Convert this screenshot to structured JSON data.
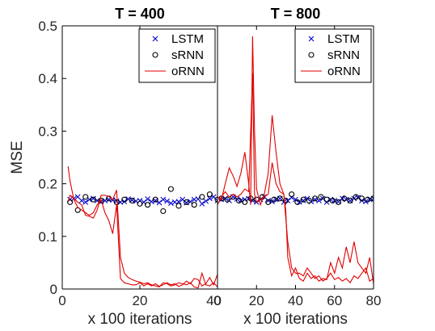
{
  "chart_data": [
    {
      "type": "scatter",
      "title": "T = 400",
      "xlabel": "x 100 iterations",
      "ylabel": "MSE",
      "xlim": [
        0,
        40
      ],
      "ylim": [
        0,
        0.5
      ],
      "xticks": [
        "0",
        "20",
        "40"
      ],
      "xtick_values": [
        0,
        20,
        40
      ],
      "yticks": [
        "0",
        "0.1",
        "0.2",
        "0.3",
        "0.4",
        "0.5"
      ],
      "ytick_values": [
        0,
        0.1,
        0.2,
        0.3,
        0.4,
        0.5
      ],
      "legend_position": "top-right",
      "series": [
        {
          "name": "LSTM",
          "kind": "marker",
          "marker": "x",
          "color": "#0000CC",
          "x": [
            2,
            3,
            4,
            5,
            6,
            7,
            8,
            9,
            10,
            11,
            12,
            13,
            14,
            15,
            16,
            17,
            18,
            19,
            20,
            21,
            22,
            23,
            24,
            25,
            26,
            27,
            28,
            29,
            30,
            31,
            32,
            33,
            34,
            35,
            36,
            37,
            38,
            39,
            40
          ],
          "y": [
            0.17,
            0.172,
            0.175,
            0.168,
            0.165,
            0.17,
            0.172,
            0.168,
            0.166,
            0.168,
            0.17,
            0.169,
            0.167,
            0.165,
            0.166,
            0.171,
            0.169,
            0.167,
            0.168,
            0.165,
            0.171,
            0.166,
            0.168,
            0.164,
            0.17,
            0.167,
            0.163,
            0.165,
            0.166,
            0.17,
            0.164,
            0.166,
            0.17,
            0.171,
            0.162,
            0.167,
            0.172,
            0.175,
            0.168
          ]
        },
        {
          "name": "sRNN",
          "kind": "marker",
          "marker": "o",
          "color": "#000000",
          "x": [
            2,
            4,
            6,
            8,
            10,
            12,
            14,
            16,
            18,
            20,
            22,
            24,
            26,
            28,
            30,
            32,
            34,
            36,
            38,
            40
          ],
          "y": [
            0.165,
            0.15,
            0.175,
            0.17,
            0.168,
            0.172,
            0.165,
            0.17,
            0.168,
            0.162,
            0.16,
            0.17,
            0.148,
            0.19,
            0.158,
            0.165,
            0.16,
            0.175,
            0.18,
            0.17
          ]
        },
        {
          "name": "oRNN",
          "kind": "line",
          "color": "#E00000",
          "lines": [
            {
              "x": [
                1.5,
                2,
                3,
                4,
                5,
                6,
                7,
                8,
                9,
                10,
                11,
                12,
                13,
                14,
                15,
                16,
                17,
                18,
                19,
                20,
                21,
                22,
                23,
                24,
                25,
                26,
                27,
                28,
                29,
                30,
                31,
                32,
                33,
                34,
                35,
                36,
                37,
                38,
                39,
                40
              ],
              "y": [
                0.233,
                0.205,
                0.17,
                0.155,
                0.15,
                0.145,
                0.14,
                0.145,
                0.16,
                0.17,
                0.145,
                0.13,
                0.105,
                0.16,
                0.02,
                0.012,
                0.01,
                0.008,
                0.008,
                0.012,
                0.006,
                0.01,
                0.006,
                0.01,
                0.005,
                0.008,
                0.012,
                0.008,
                0.01,
                0.005,
                0.008,
                0.015,
                0.01,
                0.02,
                0.018,
                0.006,
                0.01,
                0.022,
                0.008,
                0.028
              ]
            },
            {
              "x": [
                1.5,
                2,
                3,
                4,
                5,
                6,
                7,
                8,
                9,
                10,
                11,
                12,
                13,
                14,
                15,
                16,
                17,
                18,
                19,
                20,
                21,
                22,
                23,
                24,
                25,
                26,
                27,
                28,
                29,
                30,
                31,
                32,
                33,
                34,
                35,
                36,
                37,
                38,
                39,
                40
              ],
              "y": [
                0.165,
                0.178,
                0.172,
                0.165,
                0.16,
                0.14,
                0.138,
                0.135,
                0.15,
                0.178,
                0.178,
                0.176,
                0.17,
                0.188,
                0.06,
                0.03,
                0.022,
                0.018,
                0.015,
                0.013,
                0.01,
                0.012,
                0.008,
                0.006,
                0.004,
                0.012,
                0.01,
                0.006,
                0.008,
                0.012,
                0.01,
                0.008,
                0.012,
                0.004,
                0.002,
                0.03,
                0.008,
                0.006,
                0.012,
                0.004
              ]
            }
          ]
        }
      ]
    },
    {
      "type": "scatter",
      "title": "T = 800",
      "xlabel": "x 100 iterations",
      "ylabel": "",
      "xlim": [
        0,
        80
      ],
      "ylim": [
        0,
        0.5
      ],
      "xticks": [
        "0",
        "20",
        "40",
        "60",
        "80"
      ],
      "xtick_values": [
        0,
        20,
        40,
        60,
        80
      ],
      "yticks": [],
      "ytick_values": [],
      "legend_position": "top-right",
      "series": [
        {
          "name": "LSTM",
          "kind": "marker",
          "marker": "x",
          "color": "#0000CC",
          "x": [
            2,
            4,
            6,
            8,
            10,
            12,
            14,
            16,
            18,
            20,
            22,
            24,
            26,
            28,
            30,
            32,
            34,
            36,
            38,
            40,
            42,
            44,
            46,
            48,
            50,
            52,
            54,
            56,
            58,
            60,
            62,
            64,
            66,
            68,
            70,
            72,
            74,
            76,
            78,
            80
          ],
          "y": [
            0.17,
            0.172,
            0.168,
            0.175,
            0.171,
            0.168,
            0.17,
            0.172,
            0.168,
            0.165,
            0.17,
            0.175,
            0.168,
            0.166,
            0.17,
            0.172,
            0.165,
            0.168,
            0.174,
            0.17,
            0.165,
            0.168,
            0.172,
            0.166,
            0.17,
            0.168,
            0.172,
            0.165,
            0.17,
            0.168,
            0.166,
            0.172,
            0.17,
            0.168,
            0.172,
            0.174,
            0.168,
            0.166,
            0.17,
            0.172
          ]
        },
        {
          "name": "sRNN",
          "kind": "marker",
          "marker": "o",
          "color": "#000000",
          "x": [
            2,
            5,
            8,
            11,
            14,
            17,
            20,
            23,
            26,
            29,
            32,
            35,
            38,
            41,
            44,
            47,
            50,
            53,
            56,
            59,
            62,
            65,
            68,
            71,
            74,
            77,
            80
          ],
          "y": [
            0.172,
            0.17,
            0.175,
            0.168,
            0.165,
            0.172,
            0.17,
            0.175,
            0.165,
            0.17,
            0.172,
            0.168,
            0.18,
            0.165,
            0.17,
            0.168,
            0.172,
            0.175,
            0.17,
            0.168,
            0.165,
            0.172,
            0.168,
            0.175,
            0.172,
            0.17,
            0.172
          ]
        },
        {
          "name": "oRNN",
          "kind": "line",
          "color": "#E00000",
          "lines": [
            {
              "x": [
                0,
                2,
                4,
                6,
                8,
                10,
                12,
                14,
                16,
                17,
                18,
                19,
                20,
                22,
                24,
                26,
                28,
                30,
                32,
                34,
                35,
                36,
                38,
                40,
                42,
                44,
                46,
                48,
                50,
                52,
                54,
                56,
                58,
                60,
                62,
                64,
                66,
                68,
                70,
                72,
                74,
                76,
                78,
                80
              ],
              "y": [
                0.175,
                0.17,
                0.2,
                0.23,
                0.215,
                0.195,
                0.22,
                0.26,
                0.2,
                0.16,
                0.48,
                0.3,
                0.19,
                0.16,
                0.18,
                0.22,
                0.33,
                0.26,
                0.2,
                0.18,
                0.15,
                0.06,
                0.025,
                0.04,
                0.02,
                0.015,
                0.03,
                0.02,
                0.025,
                0.015,
                0.02,
                0.018,
                0.05,
                0.03,
                0.06,
                0.04,
                0.08,
                0.05,
                0.09,
                0.05,
                0.04,
                0.03,
                0.06,
                0.01
              ]
            },
            {
              "x": [
                0,
                2,
                4,
                6,
                8,
                10,
                12,
                14,
                16,
                18,
                19,
                20,
                22,
                24,
                26,
                28,
                30,
                32,
                34,
                36,
                38,
                40,
                42,
                44,
                46,
                48,
                50,
                52,
                54,
                56,
                58,
                60,
                62,
                64,
                66,
                68,
                70,
                72,
                74,
                76,
                78,
                80
              ],
              "y": [
                0.16,
                0.175,
                0.185,
                0.175,
                0.18,
                0.175,
                0.18,
                0.19,
                0.185,
                0.41,
                0.18,
                0.165,
                0.17,
                0.175,
                0.18,
                0.24,
                0.2,
                0.185,
                0.18,
                0.09,
                0.04,
                0.03,
                0.03,
                0.025,
                0.04,
                0.03,
                0.02,
                0.025,
                0.015,
                0.02,
                0.03,
                0.018,
                0.022,
                0.015,
                0.02,
                0.012,
                0.025,
                0.02,
                0.03,
                0.04,
                0.015,
                0.02
              ]
            }
          ]
        }
      ]
    }
  ]
}
